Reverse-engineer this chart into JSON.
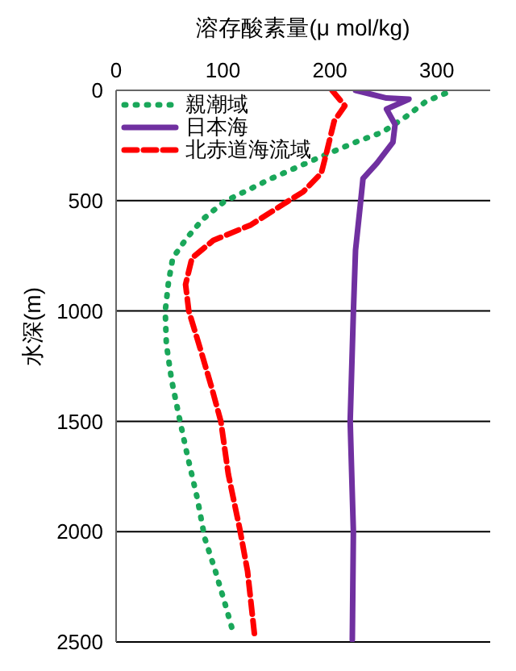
{
  "chart_data": {
    "type": "line",
    "orientation": "horizontal",
    "xlabel": "溶存酸素量(μ mol/kg)",
    "ylabel": "水深(m)",
    "xlim": [
      0,
      350
    ],
    "xticks": [
      0,
      100,
      200,
      300
    ],
    "ylim": [
      2500,
      0
    ],
    "yticks": [
      0,
      500,
      1000,
      1500,
      2000,
      2500
    ],
    "grid": "y",
    "legend": "top left",
    "marker": "none",
    "series": [
      {
        "name": "親潮域",
        "color": "#1aa75a",
        "line_style": "dotted",
        "x": [
          14,
          50,
          120,
          190,
          235,
          300,
          400,
          505,
          585,
          670,
          760,
          870,
          1000,
          1150,
          1315,
          1480,
          1640,
          1850,
          2030,
          2180,
          2345,
          2465
        ],
        "values": [
          308,
          290,
          271,
          249,
          224,
          192,
          145,
          101,
          81,
          66,
          53,
          49,
          46,
          47,
          52,
          59,
          66,
          76,
          83,
          93,
          103,
          110
        ]
      },
      {
        "name": "日本海",
        "color": "#7030a0",
        "line_style": "solid",
        "x": [
          0,
          35,
          40,
          85,
          155,
          235,
          330,
          400,
          495,
          725,
          1005,
          1500,
          2000,
          2490
        ],
        "values": [
          224,
          253,
          274,
          253,
          261,
          259,
          244,
          231,
          229,
          224,
          222,
          219,
          222,
          221
        ]
      },
      {
        "name": "北赤道海流域",
        "color": "#ff0000",
        "line_style": "dashed",
        "x": [
          0,
          70,
          140,
          280,
          375,
          460,
          505,
          610,
          680,
          760,
          880,
          1000,
          1175,
          1340,
          1500,
          1740,
          1995,
          2180,
          2490
        ],
        "values": [
          202,
          214,
          204,
          197,
          192,
          175,
          160,
          126,
          91,
          71,
          65,
          68,
          79,
          89,
          98,
          105,
          116,
          123,
          130
        ]
      }
    ]
  }
}
